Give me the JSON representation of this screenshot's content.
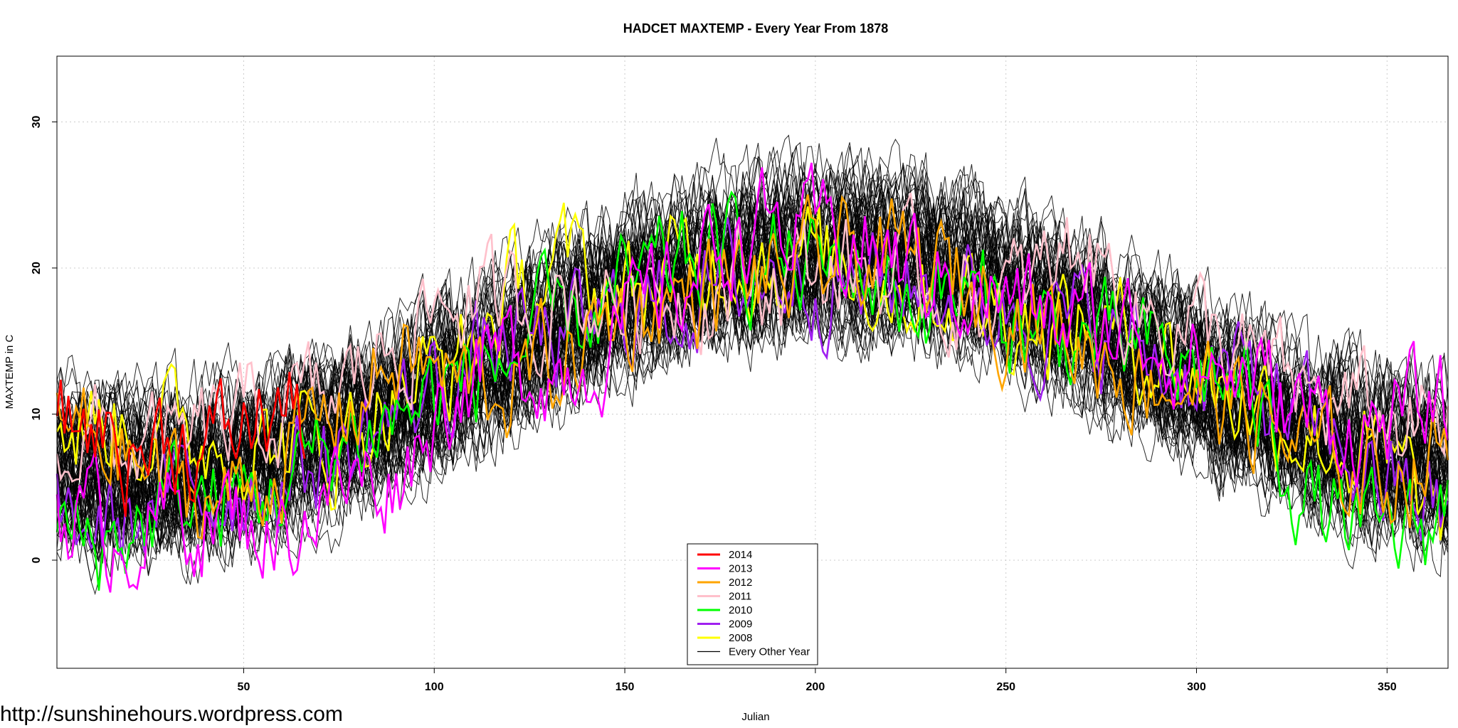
{
  "credit": "http://sunshinehours.wordpress.com",
  "chart_data": {
    "type": "line",
    "title": "HADCET MAXTEMP - Every Year From 1878",
    "xlabel": "Julian",
    "ylabel": "MAXTEMP in C",
    "xlim": [
      1,
      366
    ],
    "ylim": [
      -7.4,
      34.5
    ],
    "xticks": [
      50,
      100,
      150,
      200,
      250,
      300,
      350
    ],
    "yticks": [
      0,
      10,
      20,
      30
    ],
    "grid": true,
    "legend_position": "bottom-center",
    "colors": {
      "2014": "#ff0000",
      "2013": "#ff00ff",
      "2012": "#ffa500",
      "2011": "#ffc0cb",
      "2010": "#00ff00",
      "2009": "#a020f0",
      "2008": "#ffff00",
      "Every Other Year": "#000000"
    },
    "series": [
      {
        "name": "2014",
        "x": [
          1,
          10,
          20,
          30,
          40,
          50,
          60,
          66
        ],
        "values": [
          8.5,
          9.5,
          7.5,
          8.5,
          7.5,
          9.0,
          10.5,
          9.5
        ]
      },
      {
        "name": "2013",
        "x": [
          1,
          15,
          30,
          45,
          60,
          75,
          90,
          105,
          120,
          135,
          150,
          165,
          180,
          195,
          210,
          225,
          240,
          255,
          270,
          285,
          300,
          315,
          330,
          345,
          360,
          366
        ],
        "values": [
          4,
          2,
          3,
          3,
          2,
          5,
          6,
          12,
          14,
          13,
          16,
          19,
          23,
          22,
          22,
          20,
          19,
          17,
          16,
          16,
          14,
          12,
          10,
          9,
          10,
          10
        ]
      },
      {
        "name": "2012",
        "x": [
          1,
          15,
          30,
          45,
          60,
          75,
          90,
          105,
          120,
          135,
          150,
          165,
          180,
          195,
          210,
          225,
          240,
          255,
          270,
          285,
          300,
          315,
          330,
          345,
          360,
          366
        ],
        "values": [
          9,
          8,
          5,
          4,
          7,
          10,
          14,
          12,
          12,
          14,
          17,
          18,
          19,
          19,
          21,
          20,
          19,
          17,
          15,
          13,
          12,
          10,
          7,
          6,
          7,
          8
        ]
      },
      {
        "name": "2011",
        "x": [
          1,
          15,
          30,
          45,
          60,
          75,
          90,
          105,
          120,
          135,
          150,
          165,
          180,
          195,
          210,
          225,
          240,
          255,
          270,
          285,
          300,
          315,
          330,
          345,
          360,
          366
        ],
        "values": [
          9,
          8,
          7,
          9,
          10,
          11,
          15,
          18,
          17,
          18,
          18,
          19,
          19,
          20,
          20,
          19,
          18,
          18,
          22,
          17,
          16,
          13,
          11,
          10,
          9,
          9
        ]
      },
      {
        "name": "2010",
        "x": [
          1,
          15,
          30,
          45,
          60,
          75,
          90,
          105,
          120,
          135,
          150,
          165,
          180,
          195,
          210,
          225,
          240,
          255,
          270,
          285,
          300,
          315,
          330,
          345,
          360,
          366
        ],
        "values": [
          2,
          1,
          4,
          4,
          5,
          8,
          10,
          12,
          14,
          16,
          18,
          20,
          21,
          20,
          20,
          18,
          18,
          16,
          15,
          14,
          13,
          11,
          4,
          1,
          2,
          4
        ]
      },
      {
        "name": "2009",
        "x": [
          1,
          15,
          30,
          45,
          60,
          75,
          90,
          105,
          120,
          135,
          150,
          165,
          180,
          195,
          210,
          225,
          240,
          255,
          270,
          285,
          300,
          315,
          330,
          345,
          360,
          366
        ],
        "values": [
          3,
          2,
          4,
          5,
          6,
          7,
          10,
          13,
          15,
          15,
          17,
          18,
          19,
          20,
          19,
          19,
          18,
          17,
          16,
          14,
          13,
          12,
          9,
          6,
          4,
          3
        ]
      },
      {
        "name": "2008",
        "x": [
          1,
          15,
          30,
          45,
          60,
          75,
          90,
          105,
          120,
          135,
          150,
          165,
          180,
          195,
          210,
          225,
          240,
          255,
          270,
          285,
          300,
          315,
          330,
          345,
          360,
          366
        ],
        "values": [
          8,
          10,
          9,
          8,
          8,
          8,
          12,
          13,
          18,
          20,
          18,
          20,
          21,
          21,
          20,
          19,
          18,
          17,
          16,
          15,
          13,
          11,
          9,
          7,
          4,
          2
        ]
      },
      {
        "name": "Every Other Year",
        "x": [
          1,
          15,
          30,
          45,
          60,
          75,
          90,
          105,
          120,
          135,
          150,
          165,
          180,
          195,
          210,
          225,
          240,
          255,
          270,
          285,
          300,
          315,
          330,
          345,
          360,
          366
        ],
        "values": [
          6.5,
          6,
          6,
          6.5,
          7.5,
          9,
          10.5,
          12.5,
          14.5,
          16.5,
          18.5,
          19.5,
          20.5,
          21,
          21,
          20.5,
          19.5,
          18,
          16.5,
          14.5,
          12.5,
          10.5,
          9,
          7.5,
          7,
          6.5
        ]
      }
    ]
  }
}
